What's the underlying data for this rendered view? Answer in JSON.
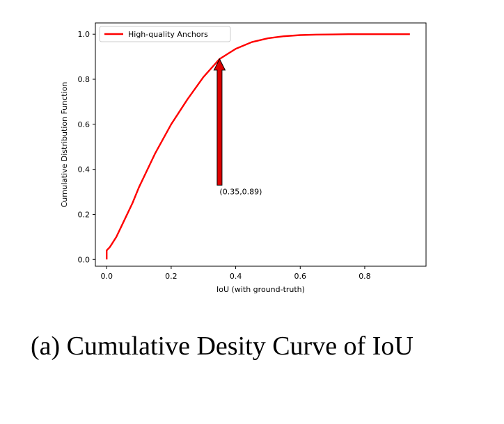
{
  "caption": "(a) Cumulative Desity Curve of IoU",
  "chart_data": {
    "type": "line",
    "xlabel": "IoU (with ground-truth)",
    "ylabel": "Cumulative Distribution Function",
    "xlim": [
      -0.035,
      0.99
    ],
    "ylim": [
      -0.03,
      1.05
    ],
    "xticks": [
      0.0,
      0.2,
      0.4,
      0.6,
      0.8
    ],
    "xtick_labels": [
      "0.0",
      "0.2",
      "0.4",
      "0.6",
      "0.8"
    ],
    "yticks": [
      0.0,
      0.2,
      0.4,
      0.6,
      0.8,
      1.0
    ],
    "ytick_labels": [
      "0.0",
      "0.2",
      "0.4",
      "0.6",
      "0.8",
      "1.0"
    ],
    "grid": false,
    "legend_position": "top-left",
    "series": [
      {
        "name": "High-quality Anchors",
        "color": "#ff0000",
        "x": [
          0.0,
          0.0,
          0.01,
          0.03,
          0.05,
          0.08,
          0.1,
          0.15,
          0.2,
          0.25,
          0.3,
          0.35,
          0.4,
          0.45,
          0.5,
          0.55,
          0.6,
          0.65,
          0.7,
          0.75,
          0.8,
          0.85,
          0.9,
          0.94
        ],
        "y": [
          0.0,
          0.04,
          0.055,
          0.1,
          0.16,
          0.25,
          0.32,
          0.47,
          0.6,
          0.71,
          0.81,
          0.89,
          0.935,
          0.965,
          0.982,
          0.991,
          0.996,
          0.998,
          0.999,
          1.0,
          1.0,
          1.0,
          1.0,
          1.0
        ]
      }
    ],
    "annotations": [
      {
        "text": "(0.35,0.89)",
        "point": [
          0.35,
          0.89
        ],
        "arrow_base_y": 0.33,
        "arrow_color": "#dd0000"
      }
    ]
  }
}
